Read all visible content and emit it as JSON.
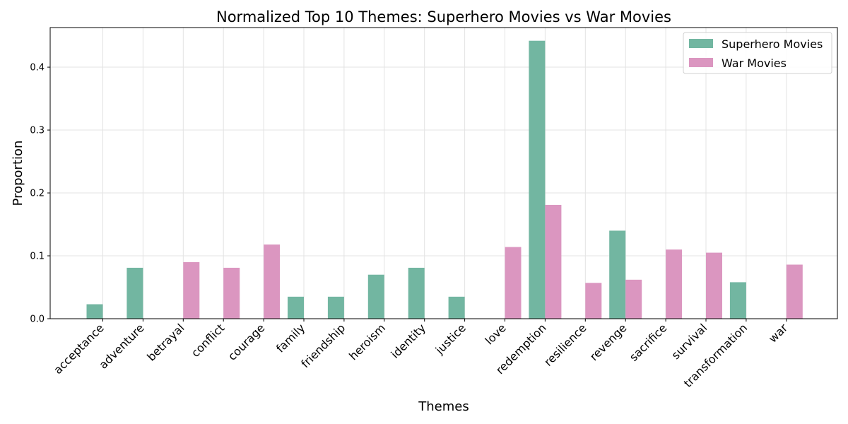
{
  "chart_data": {
    "type": "bar",
    "title": "Normalized Top 10 Themes: Superhero Movies vs War Movies",
    "xlabel": "Themes",
    "ylabel": "Proportion",
    "categories": [
      "acceptance",
      "adventure",
      "betrayal",
      "conflict",
      "courage",
      "family",
      "friendship",
      "heroism",
      "identity",
      "justice",
      "love",
      "redemption",
      "resilience",
      "revenge",
      "sacrifice",
      "survival",
      "transformation",
      "war"
    ],
    "series": [
      {
        "name": "Superhero Movies",
        "color": "#72b6a1",
        "values": [
          0.023,
          0.081,
          0,
          0,
          0,
          0.035,
          0.035,
          0.07,
          0.081,
          0.035,
          0,
          0.442,
          0,
          0.14,
          0,
          0,
          0.058,
          0
        ]
      },
      {
        "name": "War Movies",
        "color": "#db96c0",
        "values": [
          0,
          0,
          0.09,
          0.081,
          0.118,
          0,
          0,
          0,
          0,
          0,
          0.114,
          0.181,
          0.057,
          0.062,
          0.11,
          0.105,
          0,
          0.086
        ]
      }
    ],
    "ylim": [
      0,
      0.463
    ],
    "yticks": [
      "0.0",
      "0.1",
      "0.2",
      "0.3",
      "0.4"
    ],
    "grid": true,
    "legend_position": "top-right"
  }
}
